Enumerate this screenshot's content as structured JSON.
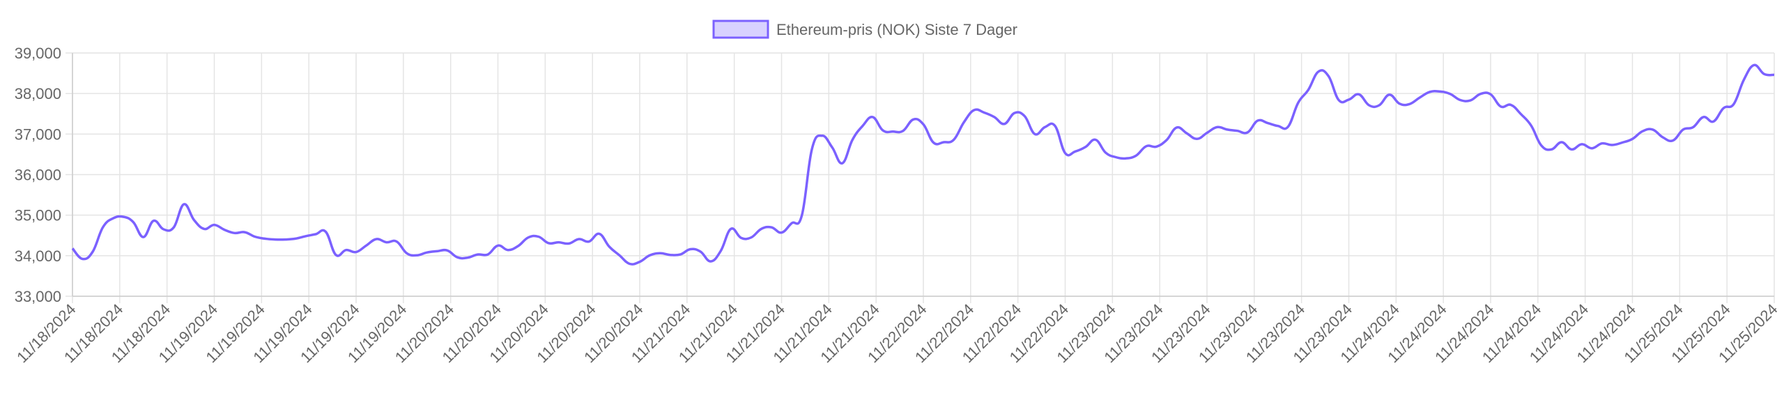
{
  "chart_data": {
    "type": "line",
    "legend": {
      "label": "Ethereum-pris (NOK) Siste 7 Dager",
      "position": "top-center"
    },
    "colors": {
      "line": "#7b61ff",
      "fill": "#d8d1ff",
      "grid": "#e4e4e4",
      "axis": "#cccccc",
      "tick_text": "#666666"
    },
    "grid": true,
    "ylim": [
      33000,
      39000
    ],
    "y_ticks": [
      "33,000",
      "34,000",
      "35,000",
      "36,000",
      "37,000",
      "38,000",
      "39,000"
    ],
    "y_tick_values": [
      33000,
      34000,
      35000,
      36000,
      37000,
      38000,
      39000
    ],
    "x_ticks": [
      "11/18/2024",
      "11/18/2024",
      "11/18/2024",
      "11/19/2024",
      "11/19/2024",
      "11/19/2024",
      "11/19/2024",
      "11/19/2024",
      "11/20/2024",
      "11/20/2024",
      "11/20/2024",
      "11/20/2024",
      "11/20/2024",
      "11/21/2024",
      "11/21/2024",
      "11/21/2024",
      "11/21/2024",
      "11/21/2024",
      "11/22/2024",
      "11/22/2024",
      "11/22/2024",
      "11/22/2024",
      "11/23/2024",
      "11/23/2024",
      "11/23/2024",
      "11/23/2024",
      "11/23/2024",
      "11/23/2024",
      "11/24/2024",
      "11/24/2024",
      "11/24/2024",
      "11/24/2024",
      "11/24/2024",
      "11/24/2024",
      "11/25/2024",
      "11/25/2024",
      "11/25/2024"
    ],
    "values": [
      34180,
      33920,
      34100,
      34700,
      34920,
      34960,
      34830,
      34460,
      34860,
      34650,
      34700,
      35270,
      34880,
      34660,
      34760,
      34640,
      34560,
      34580,
      34470,
      34420,
      34400,
      34400,
      34420,
      34480,
      34530,
      34590,
      34020,
      34140,
      34090,
      34250,
      34410,
      34330,
      34350,
      34060,
      34010,
      34080,
      34110,
      34130,
      33960,
      33950,
      34030,
      34030,
      34250,
      34140,
      34240,
      34450,
      34470,
      34310,
      34330,
      34300,
      34410,
      34350,
      34540,
      34220,
      34010,
      33800,
      33850,
      34010,
      34060,
      34020,
      34030,
      34160,
      34100,
      33860,
      34120,
      34660,
      34440,
      34450,
      34660,
      34700,
      34570,
      34800,
      34990,
      36630,
      36960,
      36670,
      36280,
      36860,
      37200,
      37420,
      37090,
      37060,
      37080,
      37360,
      37240,
      36790,
      36800,
      36860,
      37290,
      37590,
      37530,
      37420,
      37250,
      37520,
      37440,
      37000,
      37170,
      37200,
      36530,
      36570,
      36680,
      36860,
      36540,
      36430,
      36400,
      36470,
      36700,
      36690,
      36850,
      37160,
      37020,
      36880,
      37030,
      37170,
      37110,
      37080,
      37040,
      37330,
      37270,
      37200,
      37180,
      37770,
      38090,
      38540,
      38430,
      37840,
      37850,
      37980,
      37710,
      37710,
      37970,
      37750,
      37740,
      37900,
      38040,
      38050,
      37990,
      37840,
      37830,
      37990,
      37980,
      37680,
      37720,
      37490,
      37210,
      36720,
      36620,
      36800,
      36620,
      36750,
      36650,
      36770,
      36730,
      36790,
      36880,
      37070,
      37110,
      36920,
      36840,
      37110,
      37170,
      37420,
      37310,
      37640,
      37740,
      38340,
      38700,
      38480,
      38460
    ]
  }
}
